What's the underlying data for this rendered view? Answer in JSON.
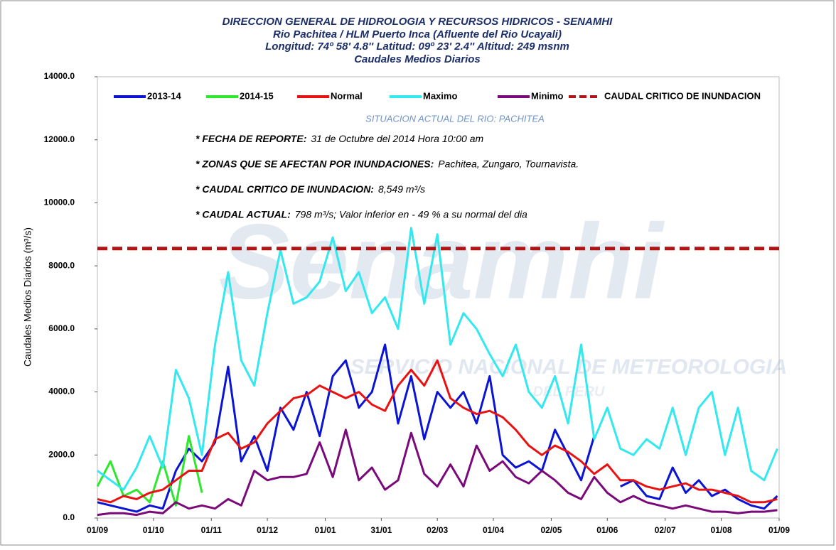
{
  "chart_data": {
    "type": "line",
    "title": [
      "DIRECCION GENERAL DE HIDROLOGIA Y RECURSOS HIDRICOS - SENAMHI",
      "Rio Pachitea / HLM  Puerto Inca (Afluente del Rio Ucayali)",
      "Longitud: 74º 58' 4.8'' Latitud: 09º 23' 2.4'' Altitud: 249 msnm",
      "Caudales Medios Diarios"
    ],
    "subtitle": "SITUACION ACTUAL DEL RIO: PACHITEA",
    "annotations": [
      {
        "label": "* FECHA DE REPORTE:",
        "text": "31 de Octubre del 2014 Hora 10:00 am"
      },
      {
        "label": "* ZONAS  QUE SE AFECTAN POR  INUNDACIONES:",
        "text": "Pachitea, Zungaro, Tournavista."
      },
      {
        "label": "* CAUDAL  CRITICO DE INUNDACION:",
        "text": "8,549 m³/s"
      },
      {
        "label": "* CAUDAL ACTUAL:",
        "text": "798 m³/s; Valor inferior en  - 49 % a su normal del dia"
      }
    ],
    "watermark": [
      "Senamhi",
      "SERVICIO NACIONAL DE METEOROLOGIA",
      "DEL PERU"
    ],
    "ylabel": "Caudales Medios Diarios (m³/s)",
    "x": [
      0,
      7,
      14,
      21,
      28,
      35,
      42,
      49,
      56,
      63,
      70,
      77,
      84,
      91,
      98,
      105,
      112,
      119,
      126,
      133,
      140,
      147,
      154,
      161,
      168,
      175,
      182,
      189,
      196,
      203,
      210,
      217,
      224,
      231,
      238,
      245,
      252,
      259,
      266,
      273,
      280,
      287,
      294,
      301,
      308,
      315,
      322,
      329,
      336,
      343,
      350,
      357,
      364
    ],
    "xlim": [
      0,
      365
    ],
    "xticks": [
      {
        "value": 0,
        "label": "01/09"
      },
      {
        "value": 30,
        "label": "01/10"
      },
      {
        "value": 61,
        "label": "01/11"
      },
      {
        "value": 91,
        "label": "01/12"
      },
      {
        "value": 122,
        "label": "01/01"
      },
      {
        "value": 152,
        "label": "31/01"
      },
      {
        "value": 182,
        "label": "02/03"
      },
      {
        "value": 212,
        "label": "01/04"
      },
      {
        "value": 243,
        "label": "02/05"
      },
      {
        "value": 273,
        "label": "01/06"
      },
      {
        "value": 304,
        "label": "02/07"
      },
      {
        "value": 334,
        "label": "01/08"
      },
      {
        "value": 365,
        "label": "01/09"
      }
    ],
    "ylim": [
      0,
      14000
    ],
    "yticks": [
      {
        "value": 0,
        "label": "0.0"
      },
      {
        "value": 2000,
        "label": "2000.0"
      },
      {
        "value": 4000,
        "label": "4000.0"
      },
      {
        "value": 6000,
        "label": "6000.0"
      },
      {
        "value": 8000,
        "label": "8000.0"
      },
      {
        "value": 10000,
        "label": "10000.0"
      },
      {
        "value": 12000,
        "label": "12000.0"
      },
      {
        "value": 14000,
        "label": "14000.0"
      }
    ],
    "series": [
      {
        "name": "2013-14",
        "color": "#0a14d2",
        "values": [
          500,
          400,
          300,
          200,
          400,
          300,
          1500,
          2200,
          1800,
          2400,
          4800,
          1800,
          2600,
          1500,
          3500,
          2800,
          4000,
          2600,
          4500,
          5000,
          3500,
          4000,
          5500,
          3000,
          4500,
          2500,
          4000,
          3500,
          4000,
          3000,
          4500,
          2000,
          1600,
          1800,
          1500,
          2800,
          2000,
          1200,
          2600,
          null,
          1000,
          1200,
          700,
          600,
          1600,
          800,
          1200,
          700,
          900,
          600,
          400,
          300,
          700
        ]
      },
      {
        "name": "2014-15",
        "color": "#2ee82e",
        "values": [
          1000,
          1800,
          700,
          900,
          500,
          1800,
          400,
          2600,
          800,
          null,
          null,
          null,
          null,
          null,
          null,
          null,
          null,
          null,
          null,
          null,
          null,
          null,
          null,
          null,
          null,
          null,
          null,
          null,
          null,
          null,
          null,
          null,
          null,
          null,
          null,
          null,
          null,
          null,
          null,
          null,
          null,
          null,
          null,
          null,
          null,
          null,
          null,
          null,
          null,
          null,
          null,
          null,
          null
        ]
      },
      {
        "name": "Normal",
        "color": "#e81212",
        "values": [
          600,
          500,
          700,
          600,
          800,
          900,
          1200,
          1500,
          1500,
          2500,
          2700,
          2200,
          2400,
          3000,
          3400,
          3800,
          3900,
          4200,
          4000,
          3800,
          4000,
          3600,
          3400,
          4200,
          4700,
          4200,
          5000,
          3800,
          3500,
          3300,
          3400,
          3200,
          2800,
          2300,
          2000,
          2300,
          2100,
          1800,
          1400,
          1700,
          1200,
          1200,
          1000,
          900,
          1000,
          1100,
          900,
          900,
          800,
          700,
          500,
          500,
          600
        ]
      },
      {
        "name": "Maximo",
        "color": "#33e8ee",
        "values": [
          1500,
          1200,
          900,
          1600,
          2600,
          1600,
          4700,
          3800,
          2000,
          5500,
          7800,
          5000,
          4200,
          6500,
          8500,
          6800,
          7000,
          7500,
          8900,
          7200,
          7800,
          6500,
          7000,
          6000,
          9200,
          6800,
          9000,
          5500,
          6500,
          6000,
          5200,
          4500,
          5500,
          4000,
          3500,
          4500,
          3000,
          5500,
          2500,
          3500,
          2200,
          2000,
          2500,
          2200,
          3500,
          2000,
          3500,
          4000,
          2000,
          3500,
          1500,
          1200,
          2200
        ]
      },
      {
        "name": "Minimo",
        "color": "#7a0a7a",
        "values": [
          100,
          150,
          150,
          100,
          200,
          150,
          500,
          300,
          400,
          300,
          600,
          400,
          1500,
          1200,
          1300,
          1300,
          1400,
          2400,
          1300,
          2800,
          1200,
          1600,
          900,
          1200,
          2700,
          1400,
          1000,
          1700,
          1000,
          2300,
          1500,
          1800,
          1300,
          1100,
          1500,
          1200,
          800,
          600,
          1300,
          800,
          500,
          700,
          500,
          400,
          300,
          400,
          300,
          200,
          200,
          150,
          200,
          200,
          250
        ]
      }
    ],
    "reference_line": {
      "name": "CAUDAL CRITICO DE INUNDACION",
      "value": 8549,
      "color": "#b01515"
    }
  }
}
